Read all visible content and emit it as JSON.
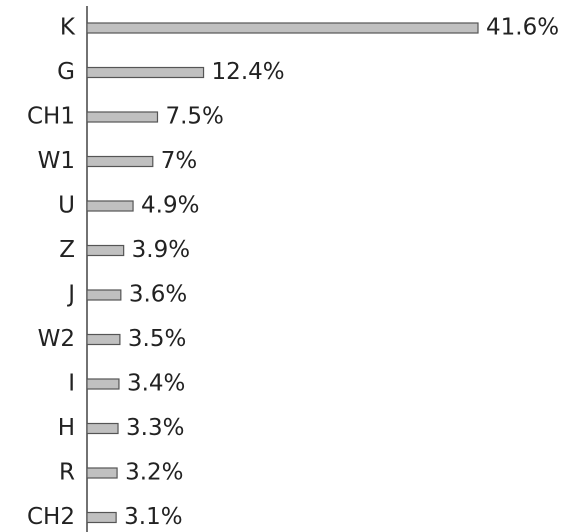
{
  "chart_data": {
    "type": "bar",
    "orientation": "horizontal",
    "categories": [
      "K",
      "G",
      "CH1",
      "W1",
      "U",
      "Z",
      "J",
      "W2",
      "I",
      "H",
      "R",
      "CH2"
    ],
    "values": [
      41.6,
      12.4,
      7.5,
      7,
      4.9,
      3.9,
      3.6,
      3.5,
      3.4,
      3.3,
      3.2,
      3.1
    ],
    "value_labels": [
      "41.6%",
      "12.4%",
      "7.5%",
      "7%",
      "4.9%",
      "3.9%",
      "3.6%",
      "3.5%",
      "3.4%",
      "3.3%",
      "3.2%",
      "3.1%"
    ],
    "color": "#c0c0c0"
  }
}
